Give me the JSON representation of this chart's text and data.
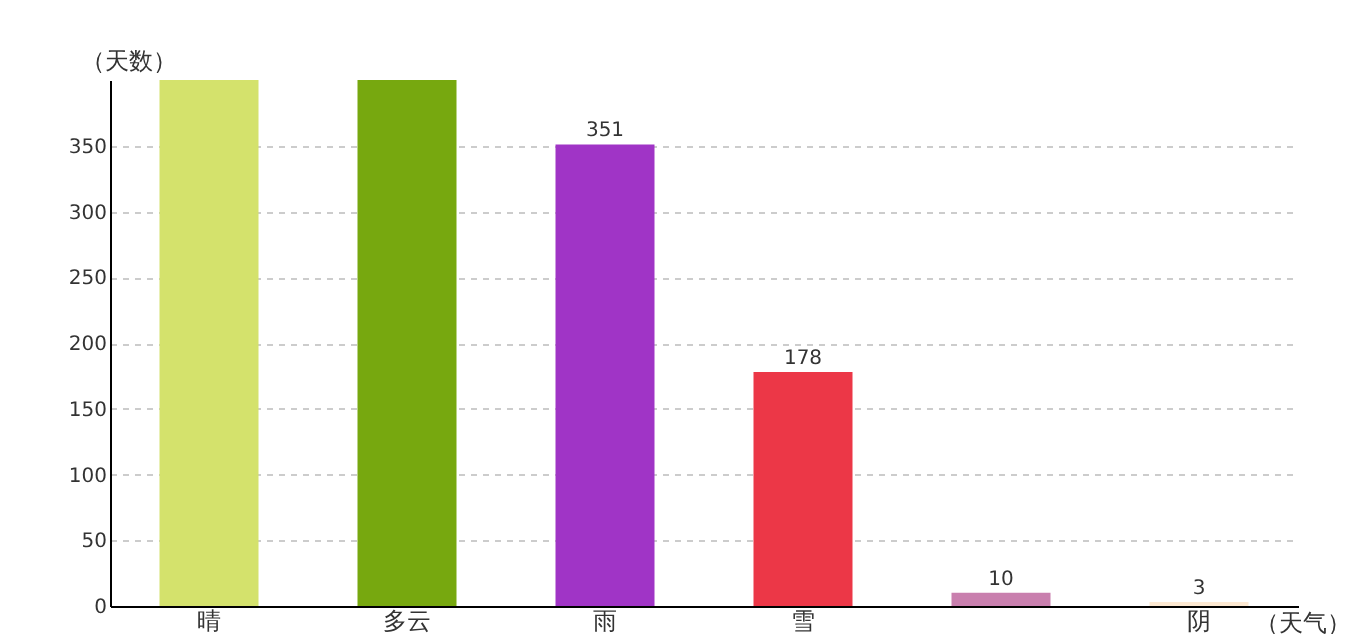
{
  "chart_data": {
    "type": "bar",
    "xlabel": "（天气）",
    "ylabel": "（天数）",
    "categories": [
      "晴",
      "多云",
      "雨",
      "雪",
      null,
      "阴"
    ],
    "values": [
      400,
      400,
      351,
      178,
      10,
      3
    ],
    "colors": [
      "#d4e26c",
      "#77a80f",
      "#a034c6",
      "#ec3747",
      "#c97fae",
      "#fde9d2"
    ],
    "value_labels": [
      null,
      null,
      "351",
      "178",
      "10",
      "3"
    ],
    "ylim": [
      0,
      400
    ],
    "yticks": [
      0,
      50,
      100,
      150,
      200,
      250,
      300,
      350
    ],
    "grid": "y"
  }
}
